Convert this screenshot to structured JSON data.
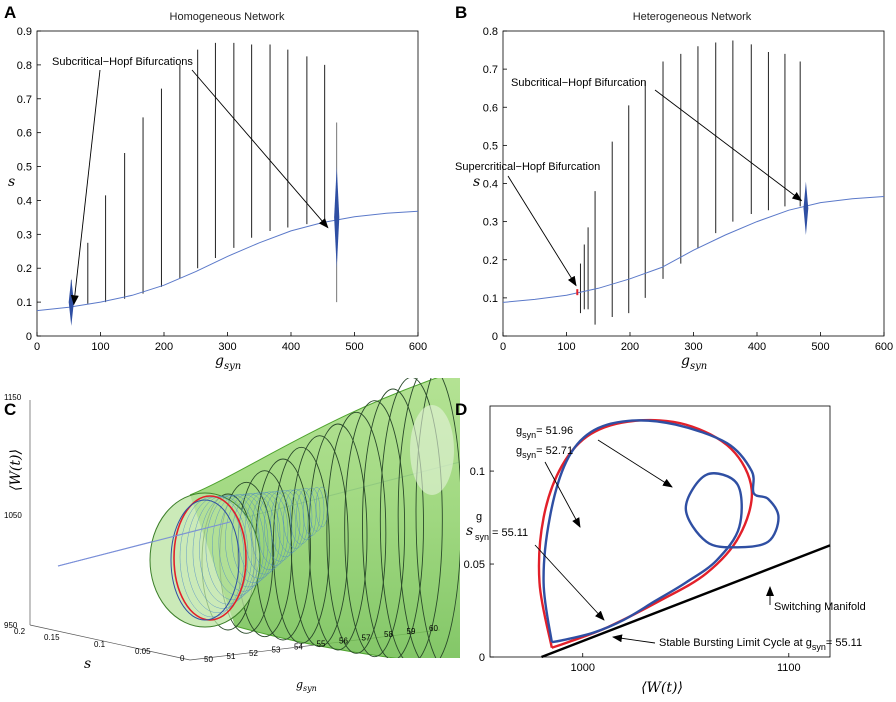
{
  "chart_data": [
    {
      "panel": "A",
      "type": "line",
      "title": "Homogeneous Network",
      "xlabel_main": "g",
      "xlabel_sub": "syn",
      "ylabel": "s",
      "xlim": [
        0,
        600
      ],
      "ylim": [
        0,
        0.9
      ],
      "xticks": [
        "0",
        "100",
        "200",
        "300",
        "400",
        "500",
        "600"
      ],
      "yticks": [
        "0",
        "0.1",
        "0.2",
        "0.3",
        "0.4",
        "0.5",
        "0.6",
        "0.7",
        "0.8",
        "0.9"
      ],
      "ytick_values": [
        0,
        0.1,
        0.2,
        0.3,
        0.4,
        0.5,
        0.6,
        0.7,
        0.8,
        0.9
      ],
      "xtick_values": [
        0,
        100,
        200,
        300,
        400,
        500,
        600
      ],
      "equilibrium": {
        "x": [
          0,
          50,
          100,
          150,
          200,
          250,
          300,
          350,
          400,
          450,
          500,
          550,
          600
        ],
        "y": [
          0.075,
          0.085,
          0.1,
          0.12,
          0.15,
          0.19,
          0.235,
          0.275,
          0.31,
          0.335,
          0.352,
          0.362,
          0.368
        ],
        "color": "#5b79c9"
      },
      "limit_cycles": {
        "x": [
          80,
          108,
          138,
          167,
          196,
          225,
          253,
          281,
          310,
          338,
          367,
          395,
          425,
          453
        ],
        "ymin": [
          0.095,
          0.1,
          0.11,
          0.125,
          0.145,
          0.17,
          0.2,
          0.23,
          0.26,
          0.29,
          0.31,
          0.32,
          0.33,
          0.335
        ],
        "ymax": [
          0.275,
          0.415,
          0.54,
          0.645,
          0.73,
          0.8,
          0.845,
          0.865,
          0.865,
          0.86,
          0.86,
          0.845,
          0.825,
          0.8
        ]
      },
      "hopf_markers": [
        {
          "x": 54,
          "y": 0.1,
          "height": 0.14
        },
        {
          "x": 472,
          "y": 0.35,
          "height": 0.3
        }
      ],
      "stray_lines": [
        {
          "x": 54,
          "y0": 0.06,
          "y1": 0.165
        },
        {
          "x": 472,
          "y0": 0.1,
          "y1": 0.63
        }
      ],
      "annotation": {
        "text": "Subcritical−Hopf Bifurcations",
        "arrows_to": [
          {
            "x": 58,
            "y": 0.07
          },
          {
            "x": 458,
            "y": 0.32
          }
        ]
      }
    },
    {
      "panel": "B",
      "type": "line",
      "title": "Heterogeneous Network",
      "xlabel_main": "g",
      "xlabel_sub": "syn",
      "ylabel": "s",
      "xlim": [
        0,
        600
      ],
      "ylim": [
        0,
        0.8
      ],
      "xticks": [
        "0",
        "100",
        "200",
        "300",
        "400",
        "500",
        "600"
      ],
      "yticks": [
        "0",
        "0.1",
        "0.2",
        "0.3",
        "0.4",
        "0.5",
        "0.6",
        "0.7",
        "0.8"
      ],
      "ytick_values": [
        0,
        0.1,
        0.2,
        0.3,
        0.4,
        0.5,
        0.6,
        0.7,
        0.8
      ],
      "xtick_values": [
        0,
        100,
        200,
        300,
        400,
        500,
        600
      ],
      "equilibrium": {
        "x": [
          0,
          50,
          100,
          150,
          200,
          250,
          300,
          350,
          400,
          450,
          500,
          550,
          600
        ],
        "y": [
          0.088,
          0.096,
          0.107,
          0.125,
          0.15,
          0.18,
          0.225,
          0.265,
          0.3,
          0.33,
          0.35,
          0.36,
          0.366
        ],
        "color": "#5b79c9"
      },
      "limit_cycles": {
        "x": [
          122,
          128,
          134,
          145,
          172,
          198,
          224,
          252,
          280,
          307,
          335,
          362,
          391,
          418,
          444,
          468
        ],
        "ymin": [
          0.06,
          0.07,
          0.07,
          0.03,
          0.05,
          0.06,
          0.1,
          0.15,
          0.19,
          0.23,
          0.27,
          0.3,
          0.32,
          0.33,
          0.34,
          0.34
        ],
        "ymax": [
          0.19,
          0.24,
          0.285,
          0.38,
          0.51,
          0.605,
          0.67,
          0.72,
          0.74,
          0.76,
          0.77,
          0.775,
          0.765,
          0.745,
          0.74,
          0.72
        ]
      },
      "hopf_markers": [
        {
          "x": 477,
          "y": 0.335,
          "height": 0.14
        }
      ],
      "super_marker": {
        "x": 117,
        "y": 0.115
      },
      "annotations": [
        {
          "text": "Subcritical−Hopf Bifurcation",
          "arrow_to": {
            "x": 470,
            "y": 0.355
          }
        },
        {
          "text": "Supercritical−Hopf Bifurcation",
          "arrow_to": {
            "x": 115,
            "y": 0.122
          }
        }
      ]
    },
    {
      "panel": "C",
      "type": "other",
      "description_free": true,
      "ylabel_math": "⟨W(t)⟩",
      "zlabel": "s",
      "xlabel_main": "g",
      "xlabel_sub": "syn",
      "w_ticks": [
        "1150",
        "1050",
        "950"
      ],
      "s_ticks": [
        "0.2",
        "0.15",
        "0.1",
        "0.05",
        "0"
      ],
      "g_ticks": [
        "50",
        "51",
        "52",
        "53",
        "54",
        "55",
        "56",
        "57",
        "58",
        "59",
        "60"
      ]
    },
    {
      "panel": "D",
      "type": "line",
      "xlabel_math": "⟨W(t)⟩",
      "ylabel": "s",
      "xlim": [
        955,
        1120
      ],
      "ylim": [
        0,
        0.135
      ],
      "xticks": [
        "1000",
        "1100"
      ],
      "xtick_values": [
        1000,
        1100
      ],
      "yticks": [
        "0",
        "0.05",
        "0.1"
      ],
      "ytick_values": [
        0,
        0.05,
        0.1
      ],
      "red_cycle": {
        "w": [
          985,
          979,
          981,
          990,
          1004,
          1025,
          1050,
          1072,
          1082,
          1076,
          1060,
          1037,
          1012,
          993,
          985
        ],
        "s": [
          0.005,
          0.04,
          0.075,
          0.103,
          0.12,
          0.127,
          0.125,
          0.112,
          0.09,
          0.065,
          0.045,
          0.03,
          0.016,
          0.008,
          0.005
        ],
        "color": "#e2202a"
      },
      "blue_cycle": {
        "w": [
          985,
          981,
          984,
          992,
          1004,
          1022,
          1045,
          1070,
          1082,
          1083,
          1090,
          1095,
          1090,
          1075,
          1060,
          1050,
          1060,
          1075,
          1076,
          1065,
          1050,
          1035,
          1020,
          1005,
          990,
          985
        ],
        "s": [
          0.008,
          0.04,
          0.075,
          0.105,
          0.121,
          0.127,
          0.125,
          0.115,
          0.1,
          0.088,
          0.085,
          0.075,
          0.062,
          0.059,
          0.062,
          0.08,
          0.098,
          0.093,
          0.07,
          0.052,
          0.04,
          0.03,
          0.02,
          0.013,
          0.009,
          0.008
        ],
        "color": "#2f4fa3"
      },
      "manifold": {
        "w": [
          980,
          1120
        ],
        "s": [
          0,
          0.06
        ],
        "color": "#000000"
      },
      "labels": {
        "g1_value": "= 51.96",
        "g2_value": "= 52.71",
        "g3_value": "55.11",
        "switching": "Switching Manifold",
        "stable": "Stable Bursting Limit Cycle at g",
        "stable_value": "= 55.11",
        "sub": "syn"
      }
    }
  ],
  "panel_letters": [
    "A",
    "B",
    "C",
    "D"
  ],
  "colors": {
    "axis": "#000000",
    "eq_line": "#5b79c9",
    "tube_fill": "#8fd16a",
    "tube_edge": "#56b43a",
    "ring": "#2a4a2a",
    "mesh": "#4a86c8",
    "red": "#e2202a",
    "blue": "#2f4fa3"
  }
}
